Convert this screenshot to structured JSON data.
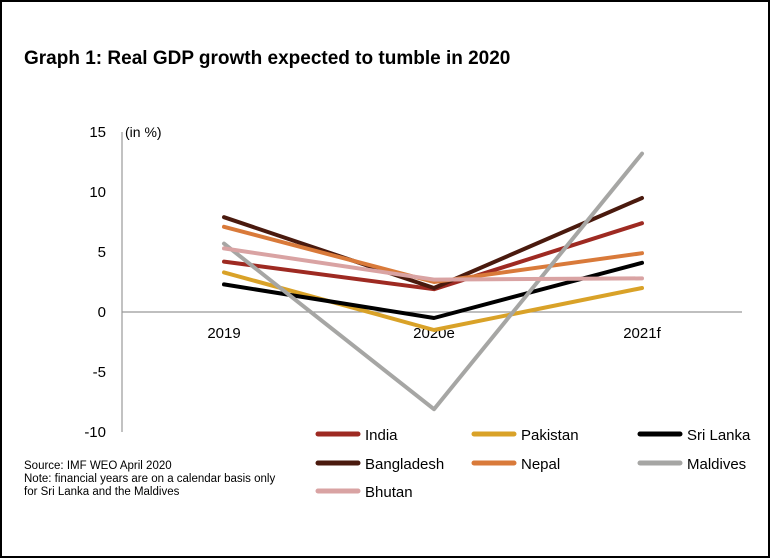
{
  "title": "Graph 1: Real GDP growth expected to tumble in 2020",
  "source": "Source: IMF WEO April 2020",
  "note_line1": "Note: financial years are on a calendar basis only",
  "note_line2": "for Sri Lanka and the Maldives",
  "chart_data": {
    "type": "line",
    "title": "Graph 1: Real GDP growth expected to tumble in 2020",
    "unit_label": "(in %)",
    "categories": [
      "2019",
      "2020e",
      "2021f"
    ],
    "ylim": [
      -10,
      15
    ],
    "yticks": [
      15,
      10,
      5,
      0,
      -5,
      -10
    ],
    "grid": false,
    "legend_position": "bottom-right",
    "series": [
      {
        "name": "India",
        "color": "#9e2a22",
        "values": [
          4.2,
          1.9,
          7.4
        ]
      },
      {
        "name": "Pakistan",
        "color": "#d9a228",
        "values": [
          3.3,
          -1.5,
          2.0
        ]
      },
      {
        "name": "Sri Lanka",
        "color": "#000000",
        "values": [
          2.3,
          -0.5,
          4.1
        ]
      },
      {
        "name": "Bangladesh",
        "color": "#4a1a0e",
        "values": [
          7.9,
          2.0,
          9.5
        ]
      },
      {
        "name": "Nepal",
        "color": "#d97a3a",
        "values": [
          7.1,
          2.5,
          4.9
        ]
      },
      {
        "name": "Maldives",
        "color": "#a6a6a4",
        "values": [
          5.7,
          -8.1,
          13.2
        ]
      },
      {
        "name": "Bhutan",
        "color": "#d9a3a3",
        "values": [
          5.3,
          2.7,
          2.8
        ]
      }
    ]
  }
}
